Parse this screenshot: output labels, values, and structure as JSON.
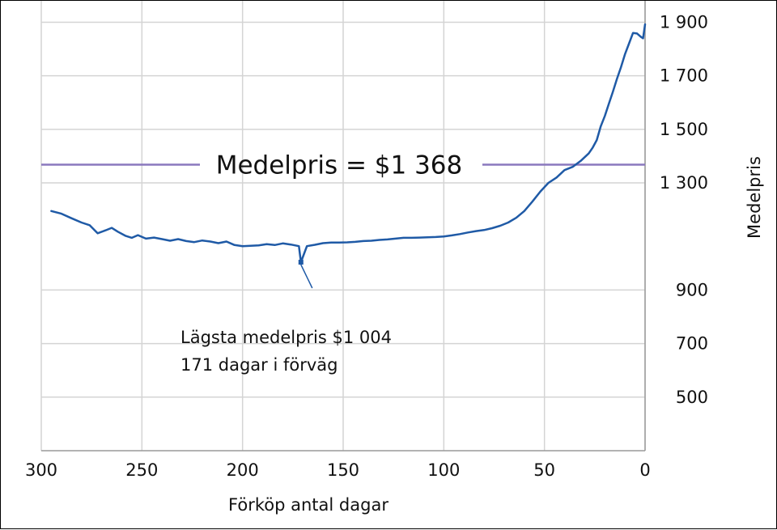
{
  "chart_data": {
    "type": "line",
    "xlabel": "Förköp antal dagar",
    "ylabel": "Medelpris",
    "xlim": [
      300,
      0
    ],
    "ylim": [
      300,
      1980
    ],
    "x_ticks": [
      "300",
      "250",
      "200",
      "150",
      "100",
      "50",
      "0"
    ],
    "x_tick_values": [
      300,
      250,
      200,
      150,
      100,
      50,
      0
    ],
    "y_ticks": [
      "500",
      "700",
      "900",
      "1 300",
      "1 500",
      "1 700",
      "1 900"
    ],
    "y_tick_values": [
      500,
      700,
      900,
      1300,
      1500,
      1700,
      1900
    ],
    "grid": true,
    "legend": "none",
    "line_color": "#1f5aa6",
    "avg_line_color": "#8a78bd",
    "average": {
      "label": "Medelpris = $1 368",
      "value": 1368
    },
    "annotation": {
      "line1": "Lägsta medelpris $1 004",
      "line2": "171 dagar i förväg",
      "x": 171,
      "y": 1004
    },
    "series": [
      {
        "x": [
          295,
          290,
          285,
          280,
          276,
          272,
          268,
          265,
          262,
          258,
          255,
          252,
          248,
          244,
          240,
          236,
          232,
          228,
          224,
          220,
          216,
          212,
          208,
          204,
          200,
          196,
          192,
          188,
          184,
          180,
          176,
          172,
          171,
          168,
          164,
          160,
          156,
          152,
          148,
          144,
          140,
          136,
          132,
          128,
          124,
          120,
          116,
          112,
          108,
          104,
          100,
          96,
          92,
          88,
          84,
          80,
          76,
          72,
          68,
          64,
          60,
          56,
          52,
          48,
          44,
          40,
          36,
          32,
          28,
          26,
          24,
          22,
          20,
          18,
          16,
          14,
          12,
          10,
          8,
          6,
          4,
          2,
          1,
          0
        ],
        "y": [
          1195,
          1185,
          1168,
          1152,
          1142,
          1112,
          1123,
          1132,
          1118,
          1102,
          1095,
          1105,
          1092,
          1096,
          1090,
          1084,
          1090,
          1083,
          1079,
          1085,
          1081,
          1075,
          1081,
          1068,
          1064,
          1065,
          1067,
          1071,
          1068,
          1074,
          1070,
          1064,
          1004,
          1064,
          1069,
          1075,
          1077,
          1077,
          1078,
          1080,
          1083,
          1084,
          1087,
          1089,
          1092,
          1095,
          1095,
          1096,
          1097,
          1098,
          1100,
          1104,
          1109,
          1115,
          1120,
          1124,
          1131,
          1140,
          1152,
          1170,
          1195,
          1230,
          1268,
          1300,
          1320,
          1348,
          1360,
          1382,
          1410,
          1432,
          1460,
          1512,
          1550,
          1595,
          1640,
          1688,
          1732,
          1780,
          1820,
          1860,
          1858,
          1845,
          1840,
          1892
        ]
      }
    ]
  }
}
